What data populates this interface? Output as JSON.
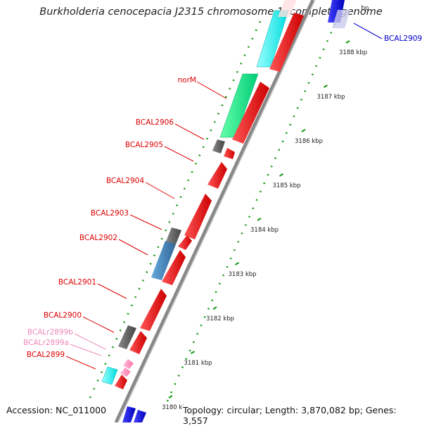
{
  "title": "Burkholderia cenocepacia J2315 chromosome 1, complete genome",
  "accession": "Accession: NC_011000",
  "summary": "Topology: circular; Length: 3,870,082 bp; Genes: 3,557",
  "scale_labels": [
    {
      "text": "3180 kbp",
      "kbp": 3180
    },
    {
      "text": "3181 kbp",
      "kbp": 3181
    },
    {
      "text": "3182 kbp",
      "kbp": 3182
    },
    {
      "text": "3183 kbp",
      "kbp": 3183
    },
    {
      "text": "3184 kbp",
      "kbp": 3184
    },
    {
      "text": "3185 kbp",
      "kbp": 3185
    },
    {
      "text": "3186 kbp",
      "kbp": 3186
    },
    {
      "text": "3187 kbp",
      "kbp": 3187
    },
    {
      "text": "3188 kbp",
      "kbp": 3188
    },
    {
      "text": "bp",
      "kbp": 3189
    }
  ],
  "gene_labels": [
    {
      "text": "BCAL2909",
      "color": "#0000cc"
    },
    {
      "text": "norM",
      "color": "#dd0000"
    },
    {
      "text": "BCAL2906",
      "color": "#dd0000"
    },
    {
      "text": "BCAL2905",
      "color": "#dd0000"
    },
    {
      "text": "BCAL2904",
      "color": "#dd0000"
    },
    {
      "text": "BCAL2903",
      "color": "#dd0000"
    },
    {
      "text": "BCAL2902",
      "color": "#dd0000"
    },
    {
      "text": "BCAL2901",
      "color": "#dd0000"
    },
    {
      "text": "BCAL2900",
      "color": "#dd0000"
    },
    {
      "text": "BCALr2899b",
      "color": "#ee88bb"
    },
    {
      "text": "BCALr2899a",
      "color": "#ee88bb"
    },
    {
      "text": "BCAL2899",
      "color": "#dd0000"
    }
  ],
  "colors": {
    "cds": "#ee0000",
    "rrna": "#ff88bb",
    "backbone": "#999999",
    "gc_positive": "#008800",
    "hypothetical": "#00ffff",
    "transporter": "#00ee88",
    "unknown": "#666666",
    "metabolism": "#4488cc",
    "blast_hit": "#0000cc"
  }
}
